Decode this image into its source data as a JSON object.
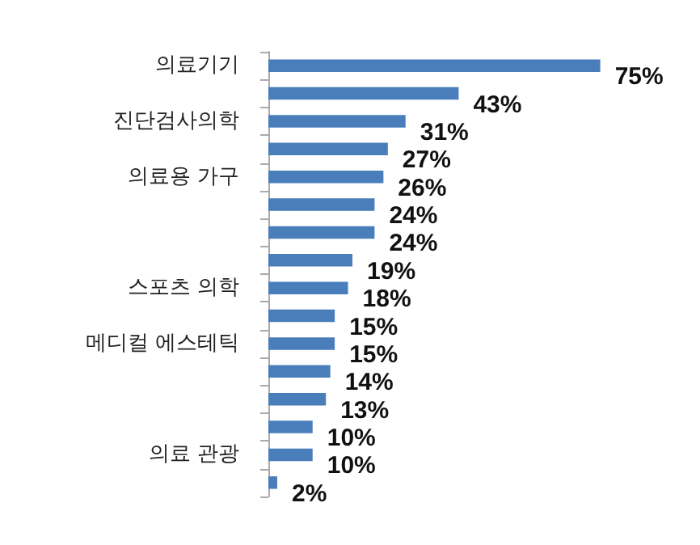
{
  "chart_data": {
    "type": "bar",
    "orientation": "horizontal",
    "categories": [
      "의료기기",
      null,
      "진단검사의학",
      null,
      "의료용 가구",
      null,
      null,
      null,
      "스포츠 의학",
      null,
      "메디컬 에스테틱",
      null,
      null,
      null,
      "의료 관광",
      null
    ],
    "values": [
      75,
      43,
      31,
      27,
      26,
      24,
      24,
      19,
      18,
      15,
      15,
      14,
      13,
      10,
      10,
      2
    ],
    "value_labels": [
      "75%",
      "43%",
      "31%",
      "27%",
      "26%",
      "24%",
      "24%",
      "19%",
      "18%",
      "15%",
      "15%",
      "14%",
      "13%",
      "10%",
      "10%",
      "2%"
    ],
    "color": "#4a7ebb",
    "grid": false
  }
}
